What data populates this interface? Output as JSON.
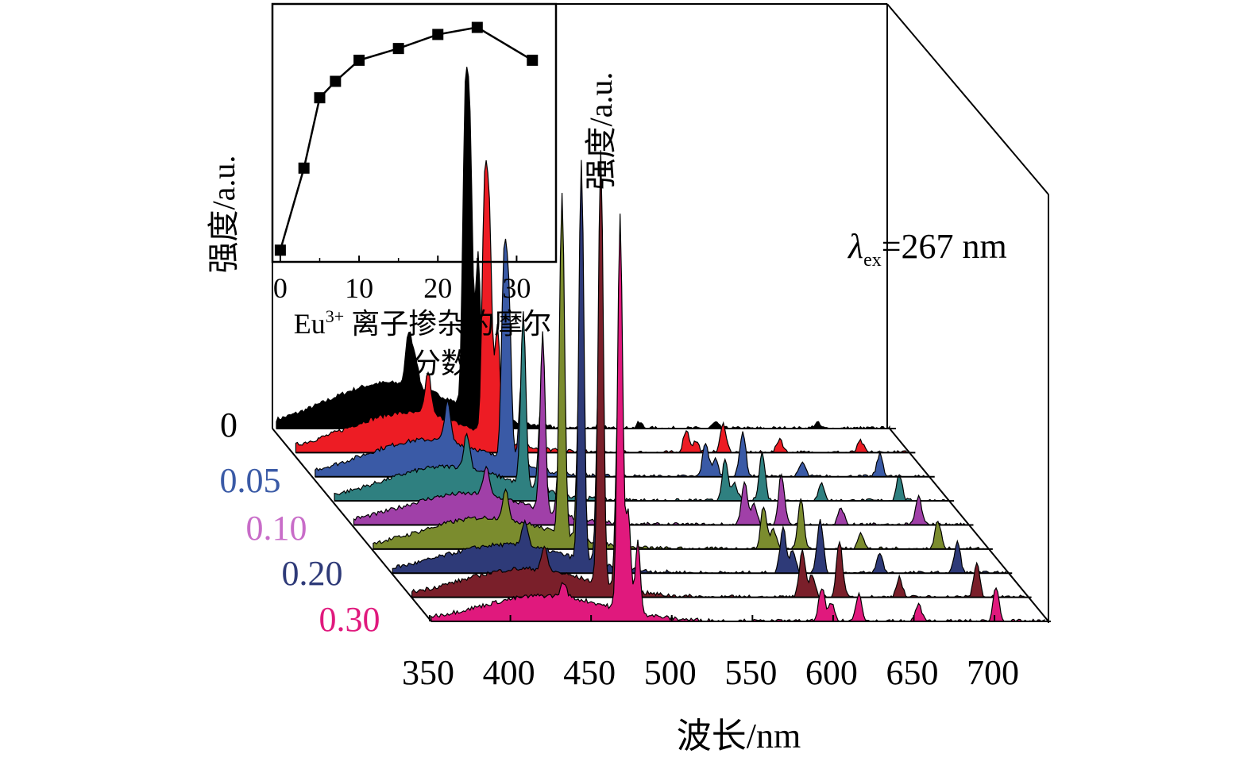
{
  "chart_data": [
    {
      "type": "line",
      "title": "",
      "xlabel": "波长/nm",
      "ylabel": "强度/a.u.",
      "zlabel": "",
      "annotation": "λex=267 nm",
      "annotation_main": "λ",
      "annotation_sub": "ex",
      "annotation_rest": "=267 nm",
      "x_ticks": [
        "350",
        "400",
        "450",
        "500",
        "550",
        "600",
        "650",
        "700"
      ],
      "xlim": [
        350,
        730
      ],
      "series_labels": [
        {
          "text": "0",
          "color": "#000000"
        },
        {
          "text": "0.05",
          "color": "#3a5aa6"
        },
        {
          "text": "0.10",
          "color": "#c86cc8"
        },
        {
          "text": "0.20",
          "color": "#2e3a78"
        },
        {
          "text": "0.30",
          "color": "#e0197d"
        }
      ],
      "series": [
        {
          "fill": "#000000",
          "broad_peak_x": 420,
          "broad_peak_y": 0.16,
          "peaks": [
            [
              432,
              0.18
            ],
            [
              436,
              0.1
            ],
            [
              467,
              1.0
            ],
            [
              470,
              0.88
            ],
            [
              475,
              0.55
            ],
            [
              550,
              0.02
            ],
            [
              575,
              0.02
            ],
            [
              622,
              0.02
            ],
            [
              685,
              0.02
            ]
          ]
        },
        {
          "fill": "#ed1c24",
          "broad_peak_x": 420,
          "broad_peak_y": 0.14,
          "peaks": [
            [
              432,
              0.15
            ],
            [
              467,
              0.8
            ],
            [
              470,
              0.7
            ],
            [
              475,
              0.4
            ],
            [
              592,
              0.08
            ],
            [
              598,
              0.04
            ],
            [
              615,
              0.1
            ],
            [
              650,
              0.05
            ],
            [
              700,
              0.04
            ]
          ]
        },
        {
          "fill": "#3a5aa6",
          "broad_peak_x": 420,
          "broad_peak_y": 0.13,
          "peaks": [
            [
              432,
              0.14
            ],
            [
              467,
              0.65
            ],
            [
              470,
              0.55
            ],
            [
              478,
              0.3
            ],
            [
              592,
              0.12
            ],
            [
              598,
              0.06
            ],
            [
              615,
              0.16
            ],
            [
              652,
              0.05
            ],
            [
              700,
              0.08
            ]
          ]
        },
        {
          "fill": "#2f8080",
          "broad_peak_x": 420,
          "broad_peak_y": 0.12,
          "peaks": [
            [
              432,
              0.12
            ],
            [
              467,
              0.6
            ],
            [
              478,
              0.3
            ],
            [
              592,
              0.14
            ],
            [
              598,
              0.06
            ],
            [
              615,
              0.17
            ],
            [
              652,
              0.06
            ],
            [
              700,
              0.09
            ]
          ]
        },
        {
          "fill": "#a040a8",
          "broad_peak_x": 420,
          "broad_peak_y": 0.11,
          "peaks": [
            [
              432,
              0.1
            ],
            [
              467,
              0.62
            ],
            [
              478,
              0.3
            ],
            [
              592,
              0.15
            ],
            [
              598,
              0.07
            ],
            [
              615,
              0.18
            ],
            [
              652,
              0.06
            ],
            [
              700,
              0.1
            ]
          ]
        },
        {
          "fill": "#7b8c2e",
          "broad_peak_x": 420,
          "broad_peak_y": 0.11,
          "peaks": [
            [
              432,
              0.1
            ],
            [
              467,
              1.2
            ],
            [
              478,
              0.6
            ],
            [
              592,
              0.15
            ],
            [
              598,
              0.07
            ],
            [
              615,
              0.18
            ],
            [
              652,
              0.06
            ],
            [
              700,
              0.1
            ]
          ]
        },
        {
          "fill": "#2e3a78",
          "broad_peak_x": 420,
          "broad_peak_y": 0.1,
          "peaks": [
            [
              432,
              0.09
            ],
            [
              467,
              1.4
            ],
            [
              478,
              0.7
            ],
            [
              592,
              0.16
            ],
            [
              598,
              0.08
            ],
            [
              615,
              0.19
            ],
            [
              652,
              0.07
            ],
            [
              700,
              0.11
            ]
          ]
        },
        {
          "fill": "#7a1f2a",
          "broad_peak_x": 420,
          "broad_peak_y": 0.1,
          "peaks": [
            [
              432,
              0.08
            ],
            [
              467,
              1.52
            ],
            [
              478,
              0.7
            ],
            [
              592,
              0.16
            ],
            [
              598,
              0.08
            ],
            [
              615,
              0.2
            ],
            [
              652,
              0.07
            ],
            [
              700,
              0.12
            ]
          ]
        },
        {
          "fill": "#e0197d",
          "broad_peak_x": 420,
          "broad_peak_y": 0.09,
          "peaks": [
            [
              432,
              0.05
            ],
            [
              467,
              1.38
            ],
            [
              472,
              0.35
            ],
            [
              478,
              0.25
            ],
            [
              592,
              0.12
            ],
            [
              598,
              0.06
            ],
            [
              615,
              0.1
            ],
            [
              652,
              0.06
            ],
            [
              700,
              0.12
            ]
          ]
        }
      ]
    },
    {
      "type": "line",
      "title": "",
      "xlabel": "Eu3+ 离子掺杂的摩尔分数",
      "xlabel_main": "Eu",
      "xlabel_sup": "3+",
      "xlabel_rest_line1": " 离子掺杂的摩尔",
      "xlabel_rest_line2": "分数",
      "ylabel": "",
      "x_ticks": [
        "0",
        "10",
        "20",
        "30"
      ],
      "xlim": [
        -1,
        35
      ],
      "ylim": [
        0,
        1.1
      ],
      "series": [
        {
          "name": "",
          "x": [
            0,
            3,
            5,
            7,
            10,
            15,
            20,
            25,
            32
          ],
          "y": [
            0.05,
            0.4,
            0.7,
            0.77,
            0.86,
            0.91,
            0.97,
            1.0,
            0.86
          ]
        }
      ]
    }
  ]
}
